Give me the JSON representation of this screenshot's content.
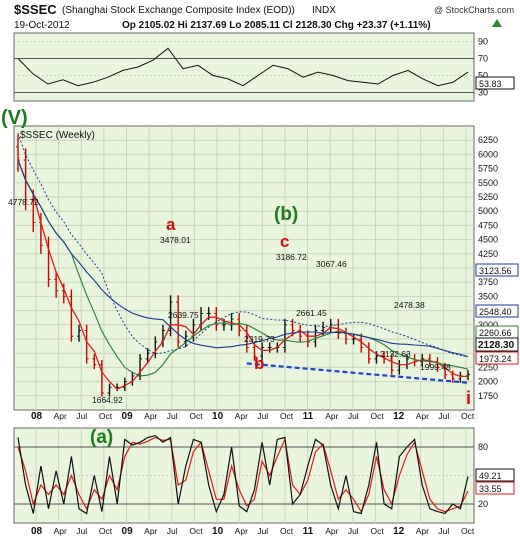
{
  "header": {
    "symbol": "$SSEC",
    "name": "(Shanghai Stock Exchange Composite Index (EOD))",
    "exchange": "INDX",
    "copyright": "@ StockCharts.com",
    "date": "19-Oct-2012",
    "ohlc": "Op 2105.02   Hi 2137.69   Lo 2085.11   Cl 2128.30   Chg +23.37 (+1.11%)",
    "change_icon": "up-triangle-icon"
  },
  "colors": {
    "panel_bg": "#e9f5dc",
    "grid": "#c8d8bc",
    "up": "#111111",
    "down": "#cc0000",
    "ma_short": "#e11b1b",
    "ma_mid": "#2e7d32",
    "ma_long": "#1a3a9a",
    "trendline": "#1f3fd6",
    "wave_green": "#1e7b1e",
    "wave_red": "#d01010"
  },
  "chart_data": [
    {
      "panel": "rsi",
      "type": "line",
      "levels": [
        30,
        70
      ],
      "ylim": [
        20,
        100
      ],
      "yticks": [
        30,
        50,
        70,
        90
      ],
      "last_value_label": "53.83",
      "x": [
        "2007-11",
        "2008-01",
        "2008-03",
        "2008-05",
        "2008-07",
        "2008-09",
        "2008-11",
        "2009-01",
        "2009-03",
        "2009-05",
        "2009-07",
        "2009-09",
        "2009-11",
        "2010-01",
        "2010-03",
        "2010-05",
        "2010-07",
        "2010-09",
        "2010-11",
        "2011-01",
        "2011-03",
        "2011-05",
        "2011-07",
        "2011-09",
        "2011-11",
        "2012-01",
        "2012-03",
        "2012-05",
        "2012-07",
        "2012-09",
        "2012-10"
      ],
      "values": [
        70,
        52,
        40,
        45,
        38,
        42,
        48,
        56,
        60,
        68,
        82,
        58,
        62,
        50,
        46,
        38,
        50,
        62,
        58,
        48,
        54,
        50,
        44,
        42,
        40,
        50,
        56,
        46,
        38,
        42,
        54
      ]
    },
    {
      "panel": "price",
      "type": "ohlc",
      "title": "$SSEC (Weekly)",
      "ylim": [
        1500,
        6500
      ],
      "yticks": [
        1750,
        2000,
        2250,
        2500,
        2750,
        3000,
        3250,
        3500,
        3750,
        4000,
        4250,
        4500,
        4750,
        5000,
        5250,
        5500,
        5750,
        6000,
        6250
      ],
      "xticks": [
        "08",
        "Apr",
        "Jul",
        "Oct",
        "09",
        "Apr",
        "Jul",
        "Oct",
        "10",
        "Apr",
        "Jul",
        "Oct",
        "11",
        "Apr",
        "Jul",
        "Oct",
        "12",
        "Apr",
        "Jul",
        "Oct"
      ],
      "x": [
        "2007-11",
        "2007-12",
        "2008-01",
        "2008-02",
        "2008-03",
        "2008-04",
        "2008-05",
        "2008-06",
        "2008-07",
        "2008-08",
        "2008-09",
        "2008-10",
        "2008-11",
        "2008-12",
        "2009-01",
        "2009-02",
        "2009-03",
        "2009-04",
        "2009-05",
        "2009-06",
        "2009-07",
        "2009-08",
        "2009-09",
        "2009-10",
        "2009-11",
        "2009-12",
        "2010-01",
        "2010-02",
        "2010-03",
        "2010-04",
        "2010-05",
        "2010-06",
        "2010-07",
        "2010-08",
        "2010-09",
        "2010-10",
        "2010-11",
        "2010-12",
        "2011-01",
        "2011-02",
        "2011-03",
        "2011-04",
        "2011-05",
        "2011-06",
        "2011-07",
        "2011-08",
        "2011-09",
        "2011-10",
        "2011-11",
        "2011-12",
        "2012-01",
        "2012-02",
        "2012-03",
        "2012-04",
        "2012-05",
        "2012-06",
        "2012-07",
        "2012-08",
        "2012-09",
        "2012-10"
      ],
      "close": [
        5900,
        5200,
        4800,
        4400,
        3800,
        3600,
        3500,
        2800,
        2900,
        2400,
        2300,
        1800,
        1900,
        1900,
        2000,
        2100,
        2400,
        2500,
        2700,
        2900,
        3400,
        2700,
        2800,
        3000,
        3200,
        3200,
        3000,
        3000,
        3100,
        2900,
        2600,
        2450,
        2600,
        2600,
        2600,
        3000,
        2900,
        2800,
        2700,
        2900,
        2950,
        3000,
        2850,
        2750,
        2750,
        2600,
        2400,
        2450,
        2400,
        2200,
        2300,
        2400,
        2350,
        2400,
        2350,
        2250,
        2120,
        2050,
        2100,
        2128
      ]
    },
    {
      "panel": "stochastic",
      "type": "line",
      "levels": [
        20,
        80
      ],
      "ylim": [
        0,
        100
      ],
      "yticks": [
        20,
        50,
        80
      ],
      "k_label": "49.21",
      "d_label": "33.55",
      "x": [
        "2007-11",
        "2007-12",
        "2008-01",
        "2008-02",
        "2008-03",
        "2008-04",
        "2008-05",
        "2008-06",
        "2008-07",
        "2008-08",
        "2008-09",
        "2008-10",
        "2008-11",
        "2008-12",
        "2009-01",
        "2009-02",
        "2009-03",
        "2009-04",
        "2009-05",
        "2009-06",
        "2009-07",
        "2009-08",
        "2009-09",
        "2009-10",
        "2009-11",
        "2009-12",
        "2010-01",
        "2010-02",
        "2010-03",
        "2010-04",
        "2010-05",
        "2010-06",
        "2010-07",
        "2010-08",
        "2010-09",
        "2010-10",
        "2010-11",
        "2010-12",
        "2011-01",
        "2011-02",
        "2011-03",
        "2011-04",
        "2011-05",
        "2011-06",
        "2011-07",
        "2011-08",
        "2011-09",
        "2011-10",
        "2011-11",
        "2011-12",
        "2012-01",
        "2012-02",
        "2012-03",
        "2012-04",
        "2012-05",
        "2012-06",
        "2012-07",
        "2012-08",
        "2012-09",
        "2012-10"
      ],
      "k": [
        90,
        40,
        10,
        60,
        15,
        55,
        20,
        70,
        15,
        10,
        50,
        12,
        70,
        20,
        88,
        82,
        85,
        90,
        92,
        85,
        90,
        20,
        60,
        88,
        85,
        40,
        12,
        30,
        80,
        18,
        12,
        35,
        85,
        40,
        88,
        90,
        20,
        30,
        60,
        88,
        82,
        40,
        15,
        50,
        12,
        10,
        40,
        85,
        20,
        15,
        70,
        80,
        88,
        40,
        15,
        12,
        10,
        20,
        15,
        49
      ],
      "d": [
        80,
        55,
        20,
        40,
        30,
        40,
        30,
        50,
        30,
        15,
        35,
        25,
        50,
        35,
        70,
        85,
        83,
        86,
        90,
        87,
        88,
        40,
        45,
        75,
        85,
        55,
        25,
        25,
        60,
        35,
        18,
        25,
        65,
        50,
        70,
        88,
        40,
        30,
        45,
        75,
        83,
        55,
        25,
        35,
        25,
        12,
        30,
        70,
        35,
        20,
        50,
        72,
        85,
        55,
        25,
        15,
        12,
        15,
        18,
        33.55
      ]
    }
  ],
  "price_labels": {
    "p_4778": "4778.72",
    "p_3478": "3478.01",
    "p_2639": "2639.75",
    "p_1664": "1664.92",
    "p_3186": "3186.72",
    "p_3067": "3067.46",
    "p_2661": "2661.45",
    "p_2319": "2319.73",
    "p_2478": "2478.38",
    "p_2132": "2132.63",
    "p_1999": "1999.48",
    "r_3123": "3123.56",
    "r_2548": "2548.40",
    "r_2260": "2260.66",
    "r_2128": "2128.30",
    "r_1973": "1973.24"
  },
  "wave_labels": {
    "v": "(V)",
    "a": "a",
    "b_paren": "(b)",
    "c": "c",
    "b_red": "b",
    "a_paren": "(a)",
    "i": "i"
  }
}
